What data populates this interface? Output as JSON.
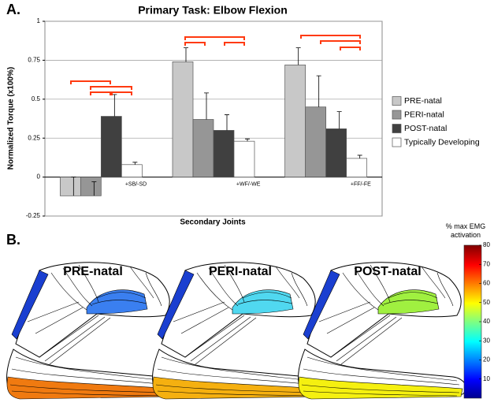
{
  "panel_labels": [
    "A.",
    "B."
  ],
  "chart_data": {
    "type": "bar",
    "title": "Primary Task: Elbow Flexion",
    "x_label": "Secondary Joints",
    "y_label": "Normalized Torque (x100%)",
    "categories": [
      "+SB/-SD",
      "+WF/-WE",
      "+FF/-FE"
    ],
    "series": [
      {
        "name": "PRE-natal",
        "color": "#c8c8c8",
        "values": [
          -0.12,
          0.74,
          0.72
        ],
        "errors": [
          0.12,
          0.09,
          0.11
        ]
      },
      {
        "name": "PERI-natal",
        "color": "#969696",
        "values": [
          -0.12,
          0.37,
          0.45
        ],
        "errors": [
          0.09,
          0.17,
          0.2
        ]
      },
      {
        "name": "POST-natal",
        "color": "#404040",
        "values": [
          0.39,
          0.3,
          0.31
        ],
        "errors": [
          0.14,
          0.1,
          0.11
        ]
      },
      {
        "name": "Typically Developing",
        "color": "#ffffff",
        "values": [
          0.08,
          0.23,
          0.12
        ],
        "errors": [
          0.015,
          0.015,
          0.02
        ]
      }
    ],
    "ylim": [
      -0.25,
      1
    ],
    "yticks": [
      -0.25,
      0,
      0.25,
      0.5,
      0.75,
      1
    ],
    "grid": true,
    "legend": "right"
  },
  "panel_b": {
    "titles": [
      "PRE-natal",
      "PERI-natal",
      "POST-natal"
    ],
    "colorbar": {
      "title": "% max EMG activation",
      "lim": [
        0,
        80
      ],
      "ticks": [
        10,
        20,
        30,
        40,
        50,
        60,
        70,
        80
      ]
    }
  }
}
